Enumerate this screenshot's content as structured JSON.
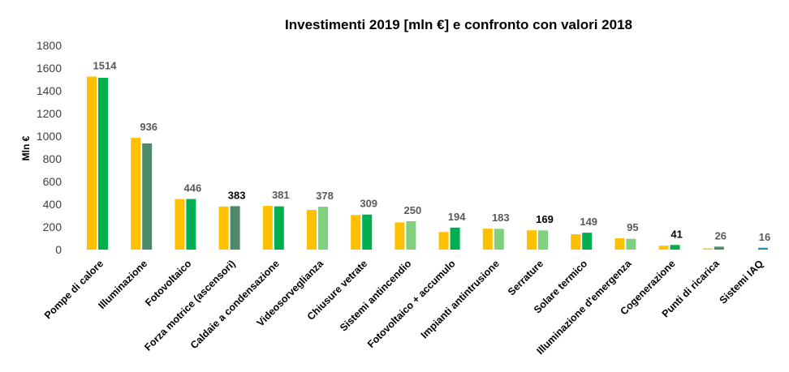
{
  "chart_data": {
    "type": "bar",
    "title": "Investimenti 2019 [mln €] e confronto con valori 2018",
    "xlabel": "",
    "ylabel": "Mln €",
    "ylim": [
      0,
      1800
    ],
    "yticks": [
      0,
      200,
      400,
      600,
      800,
      1000,
      1200,
      1400,
      1600,
      1800
    ],
    "grid": false,
    "legend": "none",
    "categories": [
      "Pompe di calore",
      "Illuminazione",
      "Fotovoltaico",
      "Forza motrice (ascensori)",
      "Caldaie a condensazione",
      "Videosorveglianza",
      "Chiusure vetrate",
      "Sistemi antincendio",
      "Fotovoltaico + accumulo",
      "Impianti antintrusione",
      "Serrature",
      "Solare termico",
      "Illuminazione d'emergenza",
      "Cogenerazione",
      "Punti di ricarica",
      "Sistemi IAQ"
    ],
    "series": [
      {
        "values": [
          1525,
          985,
          445,
          380,
          385,
          350,
          305,
          240,
          155,
          185,
          170,
          135,
          100,
          35,
          10,
          0
        ],
        "colors": [
          "#FFC000",
          "#FFC000",
          "#FFC000",
          "#FFC000",
          "#FFC000",
          "#FFC000",
          "#FFC000",
          "#FFC000",
          "#FFC000",
          "#FFC000",
          "#FFC000",
          "#FFC000",
          "#FFC000",
          "#FFC000",
          "#FFC000",
          "#FFC000"
        ]
      },
      {
        "values": [
          1514,
          936,
          446,
          383,
          381,
          378,
          309,
          250,
          194,
          183,
          169,
          149,
          95,
          41,
          26,
          16
        ],
        "colors": [
          "#00B050",
          "#4C8A6A",
          "#00B050",
          "#4C8A6A",
          "#00B050",
          "#7FD17F",
          "#00B050",
          "#7FD17F",
          "#00B050",
          "#7FD17F",
          "#7FD17F",
          "#00B050",
          "#7FD17F",
          "#00B050",
          "#4C8A6A",
          "#2E86A8"
        ]
      }
    ],
    "data_labels": [
      {
        "text": "1514",
        "color": "#595959"
      },
      {
        "text": "936",
        "color": "#595959"
      },
      {
        "text": "446",
        "color": "#595959"
      },
      {
        "text": "383",
        "color": "#000000"
      },
      {
        "text": "381",
        "color": "#595959"
      },
      {
        "text": "378",
        "color": "#595959"
      },
      {
        "text": "309",
        "color": "#595959"
      },
      {
        "text": "250",
        "color": "#595959"
      },
      {
        "text": "194",
        "color": "#595959"
      },
      {
        "text": "183",
        "color": "#595959"
      },
      {
        "text": "169",
        "color": "#000000"
      },
      {
        "text": "149",
        "color": "#595959"
      },
      {
        "text": "95",
        "color": "#595959"
      },
      {
        "text": "41",
        "color": "#000000"
      },
      {
        "text": "26",
        "color": "#595959"
      },
      {
        "text": "16",
        "color": "#595959"
      }
    ]
  }
}
